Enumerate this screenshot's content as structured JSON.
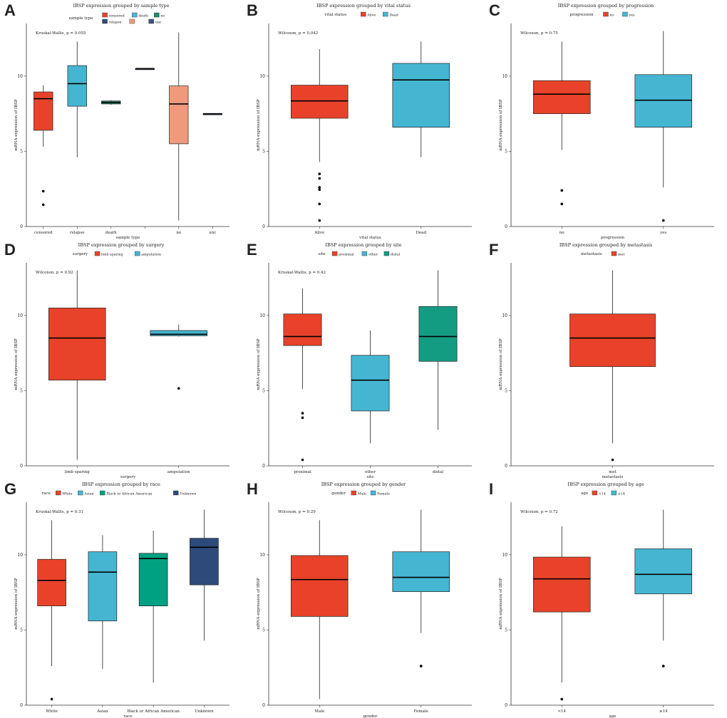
{
  "chart_data": [
    {
      "letter": "A",
      "type": "box",
      "title": "IBSP expression grouped by sample type",
      "legend_title": "sample type",
      "ylabel": "mRNA expression of IBSP",
      "xlabel": "sample type",
      "ylim": [
        0,
        13.5
      ],
      "yticks": [
        0,
        5,
        10
      ],
      "stat": "Kruskal-Wallis, p = 0.055",
      "categories": [
        "censored",
        "relapse",
        "death",
        "",
        "no",
        "unc"
      ],
      "legend_labels": [
        "censored",
        "death",
        "no",
        "relapse",
        "",
        "unc"
      ],
      "colors": [
        "#E8432A",
        "#45B6D1",
        "#1A8A6A",
        "#2D4A7A",
        "#F09A7C",
        "#3F527D"
      ],
      "boxes": [
        {
          "min": 5.3,
          "q1": 6.4,
          "median": 8.5,
          "q3": 8.95,
          "max": 9.4,
          "outliers": [
            2.35,
            1.45
          ]
        },
        {
          "min": 4.6,
          "q1": 8.0,
          "median": 9.5,
          "q3": 10.7,
          "max": 12.3,
          "outliers": []
        },
        {
          "min": 8.1,
          "q1": 8.15,
          "median": 8.25,
          "q3": 8.35,
          "max": 8.4,
          "outliers": []
        },
        {
          "min": 10.5,
          "q1": 10.5,
          "median": 10.5,
          "q3": 10.5,
          "max": 10.5,
          "outliers": []
        },
        {
          "min": 0.4,
          "q1": 5.5,
          "median": 8.15,
          "q3": 9.35,
          "max": 12.9,
          "outliers": []
        },
        {
          "min": 7.5,
          "q1": 7.5,
          "median": 7.5,
          "q3": 7.5,
          "max": 7.5,
          "outliers": []
        }
      ]
    },
    {
      "letter": "B",
      "type": "box",
      "title": "IBSP expression grouped by vital status",
      "legend_title": "vital status",
      "ylabel": "mRNA expression of IBSP",
      "xlabel": "vital status",
      "ylim": [
        0,
        13.5
      ],
      "yticks": [
        0,
        5,
        10
      ],
      "stat": "Wilcoxon, p = 0.042",
      "categories": [
        "Alive",
        "Dead"
      ],
      "legend_labels": [
        "Alive",
        "Dead"
      ],
      "colors": [
        "#E8432A",
        "#45B6D1"
      ],
      "boxes": [
        {
          "min": 4.3,
          "q1": 7.2,
          "median": 8.35,
          "q3": 9.4,
          "max": 11.8,
          "outliers": [
            3.5,
            3.2,
            2.6,
            2.45,
            1.5,
            0.4
          ]
        },
        {
          "min": 4.6,
          "q1": 6.6,
          "median": 9.75,
          "q3": 10.85,
          "max": 12.3,
          "outliers": []
        }
      ]
    },
    {
      "letter": "C",
      "type": "box",
      "title": "IBSP expression grouped by progression",
      "legend_title": "progression",
      "ylabel": "mRNA expression of IBSP",
      "xlabel": "progression",
      "ylim": [
        0,
        13.5
      ],
      "yticks": [
        0,
        5,
        10
      ],
      "stat": "Wilcoxon, p = 0.75",
      "categories": [
        "no",
        "yes"
      ],
      "legend_labels": [
        "no",
        "yes"
      ],
      "colors": [
        "#E8432A",
        "#45B6D1"
      ],
      "boxes": [
        {
          "min": 5.1,
          "q1": 7.5,
          "median": 8.8,
          "q3": 9.7,
          "max": 12.3,
          "outliers": [
            2.4,
            1.5
          ]
        },
        {
          "min": 2.6,
          "q1": 6.6,
          "median": 8.4,
          "q3": 10.1,
          "max": 13.0,
          "outliers": [
            0.4
          ]
        }
      ]
    },
    {
      "letter": "D",
      "type": "box",
      "title": "IBSP expression grouped by surgery",
      "legend_title": "surgery",
      "ylabel": "mRNA expression of IBSP",
      "xlabel": "surgery",
      "ylim": [
        0,
        13.5
      ],
      "yticks": [
        0,
        5,
        10
      ],
      "stat": "Wilcoxon, p = 0.92",
      "categories": [
        "limb sparing",
        "amputation"
      ],
      "legend_labels": [
        "limb sparing",
        "amputation"
      ],
      "colors": [
        "#E8432A",
        "#45B6D1"
      ],
      "boxes": [
        {
          "min": 0.4,
          "q1": 5.7,
          "median": 8.5,
          "q3": 10.5,
          "max": 13.0,
          "outliers": []
        },
        {
          "min": 8.6,
          "q1": 8.65,
          "median": 8.75,
          "q3": 9.0,
          "max": 9.4,
          "outliers": [
            5.15
          ]
        }
      ]
    },
    {
      "letter": "E",
      "type": "box",
      "title": "IBSP expression grouped by site",
      "legend_title": "site",
      "ylabel": "mRNA expression of IBSP",
      "xlabel": "site",
      "ylim": [
        0,
        13.5
      ],
      "yticks": [
        0,
        5,
        10
      ],
      "stat": "Kruskal-Wallis, p = 0.42",
      "categories": [
        "proximal",
        "other",
        "distal"
      ],
      "legend_labels": [
        "proximal",
        "other",
        "distal"
      ],
      "colors": [
        "#E8432A",
        "#45B6D1",
        "#149C82"
      ],
      "boxes": [
        {
          "min": 5.1,
          "q1": 8.0,
          "median": 8.6,
          "q3": 10.1,
          "max": 11.8,
          "outliers": [
            3.5,
            3.2,
            0.4
          ]
        },
        {
          "min": 1.5,
          "q1": 3.65,
          "median": 5.7,
          "q3": 7.35,
          "max": 9.0,
          "outliers": []
        },
        {
          "min": 2.4,
          "q1": 6.95,
          "median": 8.6,
          "q3": 10.6,
          "max": 13.0,
          "outliers": []
        }
      ]
    },
    {
      "letter": "F",
      "type": "box",
      "title": "IBSP expression grouped by metastasis",
      "legend_title": "metastasis",
      "ylabel": "mRNA expression of IBSP",
      "xlabel": "metastasis",
      "ylim": [
        0,
        13.5
      ],
      "yticks": [
        0,
        5,
        10
      ],
      "stat": "",
      "categories": [
        "met"
      ],
      "legend_labels": [
        "met"
      ],
      "colors": [
        "#E8432A"
      ],
      "boxes": [
        {
          "min": 1.5,
          "q1": 6.6,
          "median": 8.5,
          "q3": 10.1,
          "max": 13.0,
          "outliers": [
            0.4
          ]
        }
      ]
    },
    {
      "letter": "G",
      "type": "box",
      "title": "IBSP expression grouped by race",
      "legend_title": "race",
      "ylabel": "mRNA expression of IBSP",
      "xlabel": "race",
      "ylim": [
        0,
        13.5
      ],
      "yticks": [
        0,
        5,
        10
      ],
      "stat": "Kruskal-Wallis, p = 0.31",
      "categories": [
        "White",
        "Asian",
        "Black or African American",
        "Unknown"
      ],
      "legend_labels": [
        "White",
        "Asian",
        "Black or African American",
        "Unknown"
      ],
      "colors": [
        "#E8432A",
        "#45B6D1",
        "#00A082",
        "#2D4A7A"
      ],
      "boxes": [
        {
          "min": 2.6,
          "q1": 6.6,
          "median": 8.3,
          "q3": 9.7,
          "max": 12.3,
          "outliers": [
            0.4
          ]
        },
        {
          "min": 2.4,
          "q1": 5.6,
          "median": 8.85,
          "q3": 10.2,
          "max": 11.3,
          "outliers": []
        },
        {
          "min": 1.5,
          "q1": 6.6,
          "median": 9.75,
          "q3": 10.1,
          "max": 11.6,
          "outliers": []
        },
        {
          "min": 4.3,
          "q1": 8.0,
          "median": 10.5,
          "q3": 11.1,
          "max": 13.0,
          "outliers": []
        }
      ]
    },
    {
      "letter": "H",
      "type": "box",
      "title": "IBSP expression grouped by gender",
      "legend_title": "gender",
      "ylabel": "mRNA expression of IBSP",
      "xlabel": "gender",
      "ylim": [
        0,
        13.5
      ],
      "yticks": [
        0,
        5,
        10
      ],
      "stat": "Wilcoxon, p = 0.29",
      "categories": [
        "Male",
        "Female"
      ],
      "legend_labels": [
        "Male",
        "Female"
      ],
      "colors": [
        "#E8432A",
        "#45B6D1"
      ],
      "boxes": [
        {
          "min": 0.4,
          "q1": 5.9,
          "median": 8.35,
          "q3": 9.95,
          "max": 12.3,
          "outliers": []
        },
        {
          "min": 4.8,
          "q1": 7.55,
          "median": 8.5,
          "q3": 10.2,
          "max": 13.0,
          "outliers": [
            2.6
          ]
        }
      ]
    },
    {
      "letter": "I",
      "type": "box",
      "title": "IBSP expression grouped by age",
      "legend_title": "age",
      "ylabel": "mRNA expression of IBSP",
      "xlabel": "age",
      "ylim": [
        0,
        13.5
      ],
      "yticks": [
        0,
        5,
        10
      ],
      "stat": "Wilcoxon, p = 0.72",
      "categories": [
        "<14",
        "≥14"
      ],
      "legend_labels": [
        "<14",
        "≥14"
      ],
      "colors": [
        "#E8432A",
        "#45B6D1"
      ],
      "boxes": [
        {
          "min": 1.5,
          "q1": 6.2,
          "median": 8.4,
          "q3": 9.85,
          "max": 11.9,
          "outliers": [
            0.4
          ]
        },
        {
          "min": 4.3,
          "q1": 7.4,
          "median": 8.7,
          "q3": 10.4,
          "max": 13.0,
          "outliers": [
            2.6
          ]
        }
      ]
    }
  ]
}
